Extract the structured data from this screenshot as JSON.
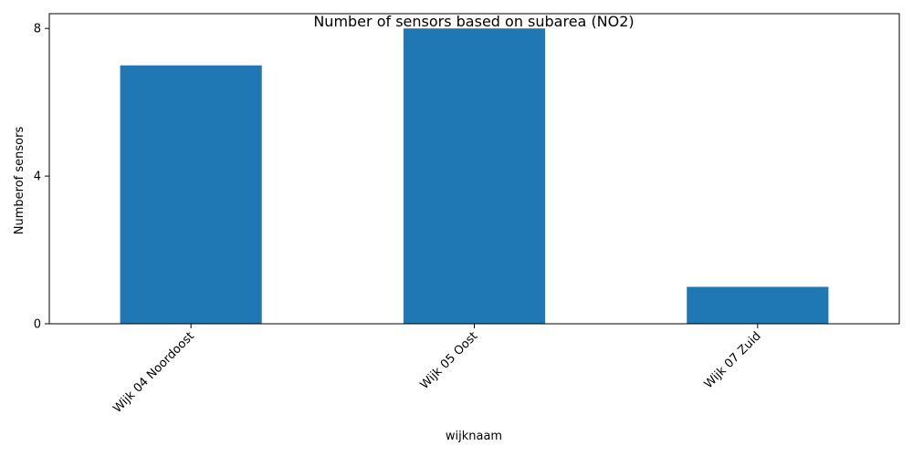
{
  "chart_data": {
    "type": "bar",
    "title": "Number of sensors based on subarea (NO2)",
    "xlabel": "wijknaam",
    "ylabel": "Numberof sensors",
    "categories": [
      "Wijk 04 Noordoost",
      "Wijk 05 Oost",
      "Wijk 07 Zuid"
    ],
    "values": [
      7,
      8,
      1
    ],
    "ylim": [
      0,
      8.4
    ],
    "yticks": [
      0,
      4,
      8
    ],
    "bar_color": "#1f77b4",
    "grid": false,
    "legend": "none"
  }
}
